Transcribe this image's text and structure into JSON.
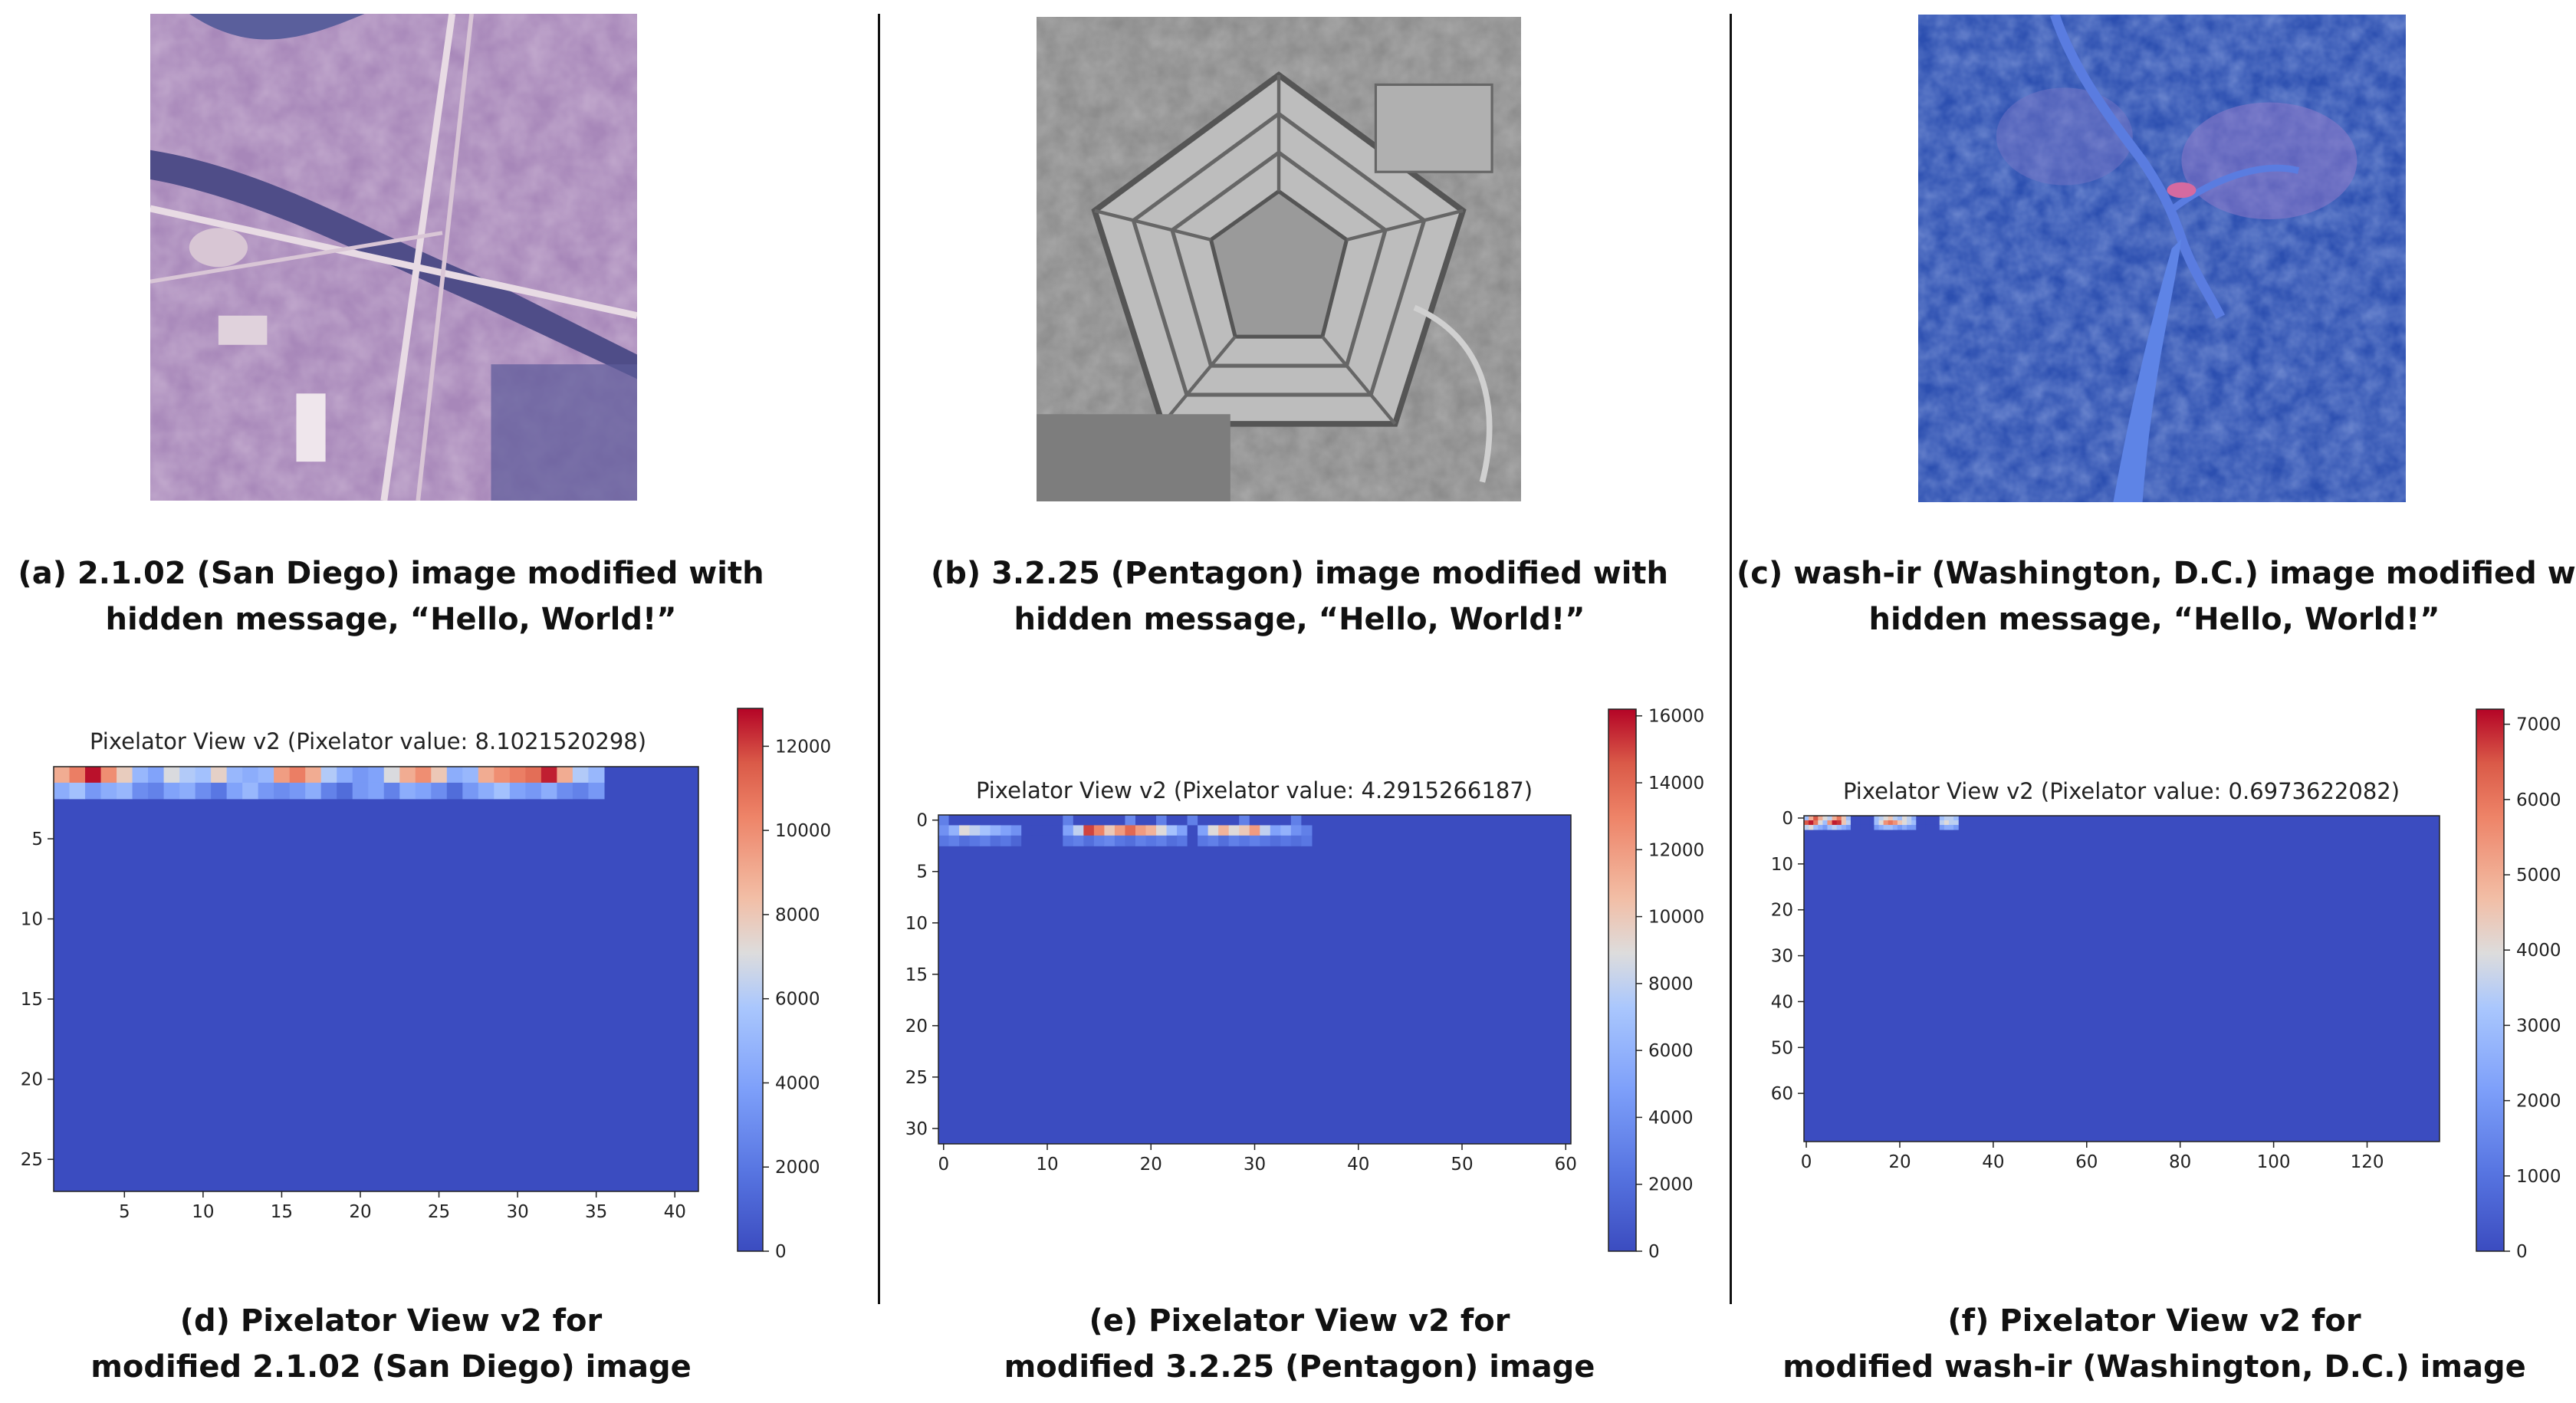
{
  "images": [
    {
      "id": "a",
      "colors": {
        "base": "#a787b9",
        "dark": "#5a4e8f",
        "light": "#d9c4d4"
      }
    },
    {
      "id": "b",
      "colors": {
        "base": "#8a8a8a",
        "dark": "#4a4a4a",
        "light": "#cfcfcf"
      }
    },
    {
      "id": "c",
      "colors": {
        "base": "#3d5fc0",
        "dark": "#1a2a6a",
        "light": "#8fb1f0"
      }
    }
  ],
  "captions": {
    "a": [
      "(a) 2.1.02 (San Diego) image modified with",
      "hidden message,  “Hello, World!”"
    ],
    "b": [
      "(b) 3.2.25 (Pentagon) image modified with",
      "hidden message, “Hello, World!”"
    ],
    "c": [
      "(c) wash-ir (Washington, D.C.) image modified with",
      "hidden message, “Hello, World!”"
    ],
    "d": [
      "(d) Pixelator View v2  for",
      "modified 2.1.02 (San Diego) image"
    ],
    "e": [
      "(e) Pixelator View v2  for",
      "modified 3.2.25 (Pentagon) image"
    ],
    "f": [
      "(f) Pixelator View v2  for",
      "modified wash-ir (Washington, D.C.) image"
    ]
  },
  "chart_data": [
    {
      "type": "heatmap",
      "title": "Pixelator View v2 (Pixelator value: 8.1021520298)",
      "xlim": [
        0.5,
        41.5
      ],
      "ylim": [
        27,
        0.5
      ],
      "xticks": [
        5,
        10,
        15,
        20,
        25,
        30,
        35,
        40
      ],
      "yticks": [
        5,
        10,
        15,
        20,
        25
      ],
      "ytick_labels": [
        "5",
        "10",
        "15",
        "20",
        "25"
      ],
      "colorbar": {
        "min": 0,
        "max": 12900,
        "ticks": [
          0,
          2000,
          4000,
          6000,
          8000,
          10000,
          12000
        ]
      },
      "background_value": 0,
      "rows": [
        {
          "y": 1,
          "x_start": 1,
          "values": [
            9000,
            10500,
            12700,
            10000,
            7800,
            5000,
            4000,
            7000,
            6000,
            5500,
            7600,
            5000,
            4500,
            5000,
            9500,
            10500,
            9000,
            6000,
            4500,
            3500,
            4000,
            7000,
            9000,
            10000,
            8000,
            4500,
            5000,
            9000,
            10000,
            10500,
            11000,
            12500,
            9000,
            6000,
            5000
          ]
        },
        {
          "y": 2,
          "x_start": 1,
          "values": [
            4500,
            5500,
            3500,
            4500,
            5000,
            3000,
            2500,
            4000,
            4500,
            3000,
            2000,
            4000,
            5000,
            3500,
            3000,
            3500,
            4500,
            2500,
            1500,
            3500,
            4000,
            2500,
            4500,
            4000,
            3000,
            1500,
            3500,
            4500,
            5500,
            4000,
            3500,
            4500,
            3000,
            2500,
            3500
          ]
        }
      ]
    },
    {
      "type": "heatmap",
      "title": "Pixelator View v2 (Pixelator value: 4.2915266187)",
      "xlim": [
        -0.5,
        60.5
      ],
      "ylim": [
        31.5,
        -0.5
      ],
      "xticks": [
        0,
        10,
        20,
        30,
        40,
        50,
        60
      ],
      "yticks": [
        0,
        5,
        10,
        15,
        20,
        25,
        30
      ],
      "colorbar": {
        "min": 0,
        "max": 16200,
        "ticks": [
          0,
          2000,
          4000,
          6000,
          8000,
          10000,
          12000,
          14000,
          16000
        ]
      },
      "background_value": 0,
      "rows": [
        {
          "y": 0,
          "x_start": 0,
          "values": [
            3000,
            0,
            0,
            0,
            0,
            0,
            0,
            0,
            0,
            0,
            0,
            0,
            3000,
            0,
            0,
            0,
            0,
            0,
            3500,
            0,
            0,
            3000,
            0,
            0,
            3000,
            0,
            0,
            0,
            0,
            3000,
            0,
            0,
            0,
            0,
            3000,
            0
          ]
        },
        {
          "y": 1,
          "x_start": 0,
          "values": [
            4000,
            6000,
            9000,
            8000,
            7000,
            6000,
            5000,
            4000,
            0,
            0,
            0,
            0,
            5000,
            8000,
            15000,
            13000,
            10000,
            12000,
            14000,
            12000,
            11000,
            9000,
            7000,
            5000,
            0,
            5000,
            9000,
            11000,
            9000,
            10000,
            12000,
            8000,
            5000,
            6000,
            4000,
            3000
          ]
        },
        {
          "y": 2,
          "x_start": 0,
          "values": [
            2500,
            3000,
            2000,
            2500,
            3000,
            2000,
            2500,
            1500,
            0,
            0,
            0,
            0,
            2500,
            3000,
            2000,
            3000,
            3500,
            2500,
            2000,
            3000,
            2500,
            3000,
            2000,
            2500,
            0,
            2500,
            3000,
            2000,
            3000,
            2500,
            3000,
            2500,
            2000,
            2500,
            2000,
            2500
          ]
        }
      ]
    },
    {
      "type": "heatmap",
      "title": "Pixelator View v2 (Pixelator value: 0.6973622082)",
      "xlim": [
        -0.5,
        135.5
      ],
      "ylim": [
        70.5,
        -0.5
      ],
      "xticks": [
        0,
        20,
        40,
        60,
        80,
        100,
        120
      ],
      "yticks": [
        0,
        10,
        20,
        30,
        40,
        50,
        60
      ],
      "colorbar": {
        "min": 0,
        "max": 7200,
        "ticks": [
          0,
          1000,
          2000,
          3000,
          4000,
          5000,
          6000,
          7000
        ]
      },
      "background_value": 0,
      "rows": [
        {
          "y": 0,
          "x_start": 0,
          "values": [
            3000,
            5000,
            6500,
            5000,
            4000,
            3500,
            5000,
            6000,
            4500,
            3000,
            0,
            0,
            0,
            0,
            0,
            3000,
            3500,
            4000,
            4500,
            3500,
            3000,
            4000,
            3500,
            2500,
            0,
            0,
            0,
            0,
            0,
            3000,
            3500,
            3500,
            3000
          ]
        },
        {
          "y": 1,
          "x_start": 0,
          "values": [
            6500,
            7000,
            6000,
            4000,
            3000,
            5500,
            7000,
            6800,
            4500,
            3500,
            0,
            0,
            0,
            0,
            0,
            3000,
            4000,
            5500,
            6000,
            5500,
            4500,
            4000,
            3500,
            3000,
            0,
            0,
            0,
            0,
            0,
            3500,
            4000,
            3500,
            3500
          ]
        },
        {
          "y": 2,
          "x_start": 0,
          "values": [
            3500,
            4000,
            3000,
            2500,
            2000,
            3000,
            3500,
            3000,
            2500,
            2000,
            0,
            0,
            0,
            0,
            0,
            2000,
            2500,
            3000,
            3000,
            2500,
            2000,
            2500,
            2000,
            2000,
            0,
            0,
            0,
            0,
            0,
            2000,
            2500,
            2500,
            2000
          ]
        }
      ]
    }
  ]
}
